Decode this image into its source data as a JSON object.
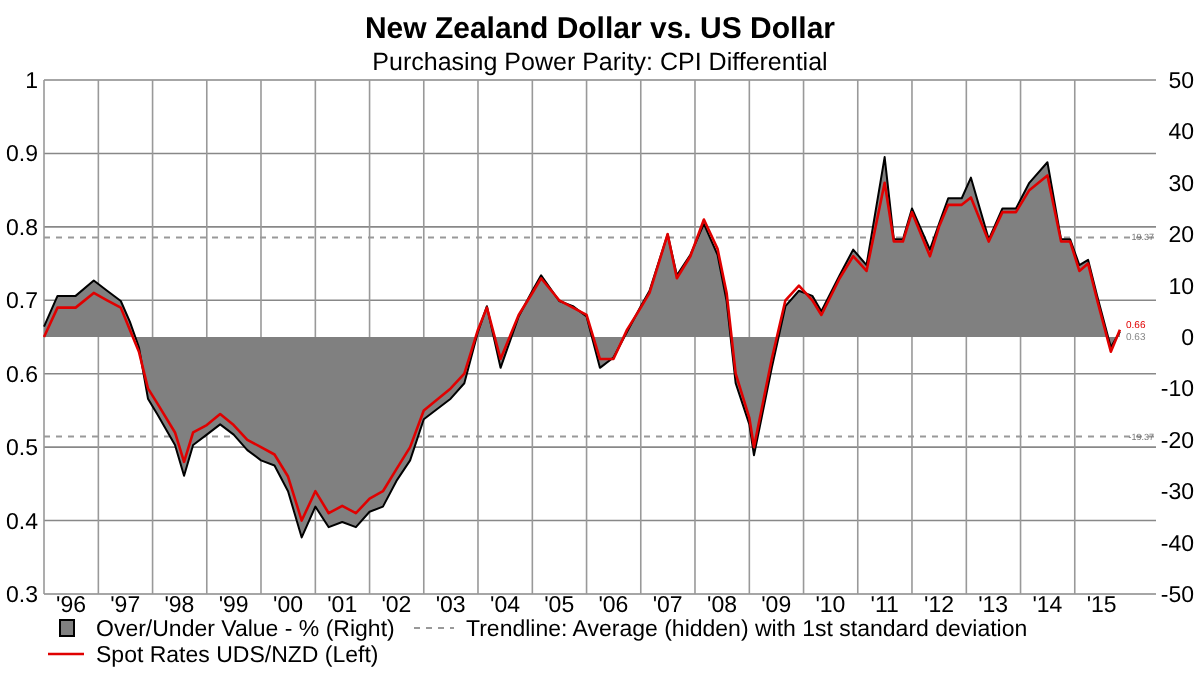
{
  "chart_data": {
    "type": "line",
    "title": "New Zealand Dollar vs. US Dollar",
    "subtitle": "Purchasing Power Parity: CPI Differential",
    "x": [
      "1996-01",
      "1996-04",
      "1996-08",
      "1996-12",
      "1997-03",
      "1997-06",
      "1997-08",
      "1997-10",
      "1997-12",
      "1998-02",
      "1998-06",
      "1998-08",
      "1998-10",
      "1999-01",
      "1999-04",
      "1999-07",
      "1999-10",
      "2000-01",
      "2000-04",
      "2000-07",
      "2000-10",
      "2001-01",
      "2001-04",
      "2001-07",
      "2001-10",
      "2002-01",
      "2002-04",
      "2002-07",
      "2002-10",
      "2003-01",
      "2003-07",
      "2003-10",
      "2004-01",
      "2004-03",
      "2004-06",
      "2004-10",
      "2005-01",
      "2005-03",
      "2005-07",
      "2005-10",
      "2006-01",
      "2006-04",
      "2006-07",
      "2006-10",
      "2007-01",
      "2007-03",
      "2007-07",
      "2007-09",
      "2007-12",
      "2008-03",
      "2008-06",
      "2008-08",
      "2008-10",
      "2009-01",
      "2009-02",
      "2009-06",
      "2009-09",
      "2009-12",
      "2010-03",
      "2010-05",
      "2010-09",
      "2010-12",
      "2011-03",
      "2011-07",
      "2011-09",
      "2011-11",
      "2012-01",
      "2012-05",
      "2012-07",
      "2012-09",
      "2012-12",
      "2013-02",
      "2013-06",
      "2013-09",
      "2013-12",
      "2014-03",
      "2014-07",
      "2014-10",
      "2014-12",
      "2015-02",
      "2015-04",
      "2015-06",
      "2015-09",
      "2015-11"
    ],
    "series": [
      {
        "name": "Over/Under Value - % (Right)",
        "type": "area",
        "axis": "y2",
        "color": "#808080",
        "values": [
          2,
          8,
          8,
          11,
          9,
          7,
          3,
          -2,
          -12,
          -15,
          -21,
          -27,
          -21,
          -19,
          -17,
          -19,
          -22,
          -24,
          -25,
          -30,
          -39,
          -33,
          -37,
          -36,
          -37,
          -34,
          -33,
          -28,
          -24,
          -16,
          -12,
          -9,
          1,
          6,
          -6,
          4,
          9,
          12,
          7,
          6,
          4,
          -6,
          -4,
          1,
          6,
          9,
          20,
          12,
          16,
          22,
          16,
          7,
          -9,
          -17,
          -23,
          -6,
          6,
          9,
          8,
          5,
          12,
          17,
          14,
          35,
          19,
          19,
          25,
          17,
          22,
          27,
          27,
          31,
          19,
          25,
          25,
          30,
          34,
          19,
          19,
          14,
          15,
          8,
          -2,
          1
        ]
      },
      {
        "name": "Spot Rates UDS/NZD  (Left)",
        "color": "#e00000",
        "values": [
          0.65,
          0.69,
          0.69,
          0.71,
          0.7,
          0.69,
          0.66,
          0.63,
          0.58,
          0.56,
          0.52,
          0.48,
          0.52,
          0.53,
          0.545,
          0.53,
          0.51,
          0.5,
          0.49,
          0.46,
          0.4,
          0.44,
          0.41,
          0.42,
          0.41,
          0.43,
          0.44,
          0.47,
          0.5,
          0.55,
          0.58,
          0.6,
          0.66,
          0.69,
          0.62,
          0.68,
          0.71,
          0.73,
          0.7,
          0.69,
          0.68,
          0.62,
          0.62,
          0.66,
          0.69,
          0.71,
          0.79,
          0.73,
          0.76,
          0.81,
          0.77,
          0.71,
          0.6,
          0.54,
          0.5,
          0.62,
          0.7,
          0.72,
          0.7,
          0.68,
          0.73,
          0.76,
          0.74,
          0.86,
          0.78,
          0.78,
          0.82,
          0.76,
          0.8,
          0.83,
          0.83,
          0.84,
          0.78,
          0.82,
          0.82,
          0.85,
          0.87,
          0.78,
          0.78,
          0.74,
          0.75,
          0.7,
          0.63,
          0.66
        ]
      }
    ],
    "xlim": [
      "1996-01",
      "2016-07"
    ],
    "xticks": [
      {
        "value": "1996-01",
        "label": null
      },
      {
        "value": "1997-01",
        "label": null
      },
      {
        "value": "1998-01",
        "label": null
      },
      {
        "value": "1999-01",
        "label": null
      },
      {
        "value": "2000-01",
        "label": null
      },
      {
        "value": "2001-01",
        "label": null
      },
      {
        "value": "2002-01",
        "label": null
      },
      {
        "value": "2003-01",
        "label": null
      },
      {
        "value": "2004-01",
        "label": null
      },
      {
        "value": "2005-01",
        "label": null
      },
      {
        "value": "2006-01",
        "label": null
      },
      {
        "value": "2007-01",
        "label": null
      },
      {
        "value": "2008-01",
        "label": null
      },
      {
        "value": "2009-01",
        "label": null
      },
      {
        "value": "2010-01",
        "label": null
      },
      {
        "value": "2011-01",
        "label": null
      },
      {
        "value": "2012-01",
        "label": null
      },
      {
        "value": "2013-01",
        "label": null
      },
      {
        "value": "2014-01",
        "label": null
      },
      {
        "value": "2015-01",
        "label": null
      },
      {
        "value": "1996-07",
        "label": "'96"
      },
      {
        "value": "1997-07",
        "label": "'97"
      },
      {
        "value": "1998-07",
        "label": "'98"
      },
      {
        "value": "1999-07",
        "label": "'99"
      },
      {
        "value": "2000-07",
        "label": "'00"
      },
      {
        "value": "2001-07",
        "label": "'01"
      },
      {
        "value": "2002-07",
        "label": "'02"
      },
      {
        "value": "2003-07",
        "label": "'03"
      },
      {
        "value": "2004-07",
        "label": "'04"
      },
      {
        "value": "2005-07",
        "label": "'05"
      },
      {
        "value": "2006-07",
        "label": "'06"
      },
      {
        "value": "2007-07",
        "label": "'07"
      },
      {
        "value": "2008-07",
        "label": "'08"
      },
      {
        "value": "2009-07",
        "label": "'09"
      },
      {
        "value": "2010-07",
        "label": "'10"
      },
      {
        "value": "2011-07",
        "label": "'11"
      },
      {
        "value": "2012-07",
        "label": "'12"
      },
      {
        "value": "2013-07",
        "label": "'13"
      },
      {
        "value": "2014-07",
        "label": "'14"
      },
      {
        "value": "2015-07",
        "label": "'15"
      }
    ],
    "ylim": [
      0.3,
      1
    ],
    "yticks": [
      0.3,
      0.4,
      0.5,
      0.6,
      0.7,
      0.8,
      0.9,
      1
    ],
    "y2lim": [
      -50,
      50
    ],
    "y2ticks": [
      -50,
      -40,
      -30,
      -20,
      -10,
      0,
      10,
      20,
      30,
      40,
      50
    ],
    "ref_lines": [
      {
        "axis": "y2",
        "value": 19.37,
        "label": "19.37",
        "color": "#999999",
        "line_style": "dashed"
      },
      {
        "axis": "y2",
        "value": -19.37,
        "label": "-19.37",
        "color": "#999999",
        "line_style": "dashed"
      }
    ],
    "annotations": [
      "Trendline: Average (hidden) with 1st standard deviation",
      "0.66",
      "0.63"
    ],
    "grid": true,
    "legend": "bottom left"
  }
}
